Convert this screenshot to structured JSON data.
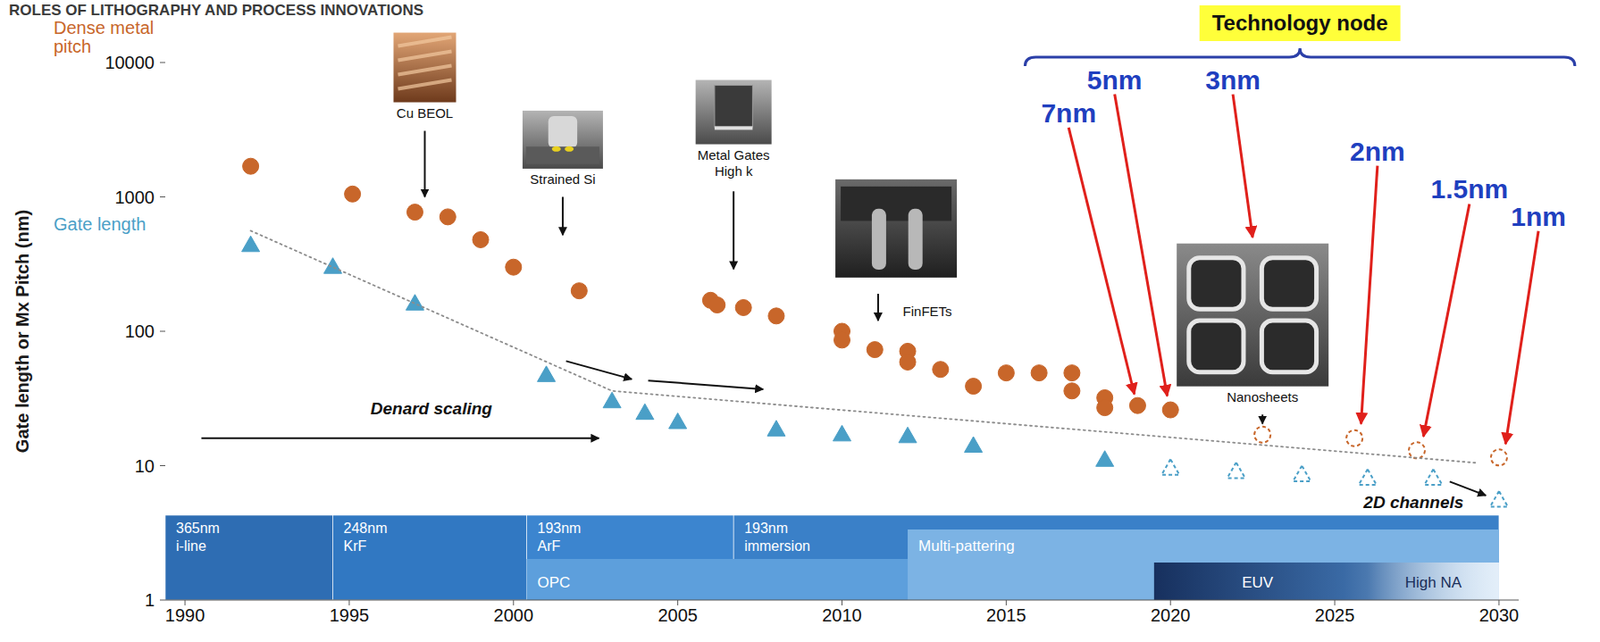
{
  "chart_data": {
    "type": "scatter",
    "title": "ROLES OF LITHOGRAPHY AND PROCESS INNOVATIONS",
    "y_label": "Gate length or Mx Pitch (nm)",
    "log": "y",
    "grid": false,
    "xlim": [
      1989.4,
      2030.6
    ],
    "xticks": [
      1990,
      1995,
      2000,
      2005,
      2010,
      2015,
      2020,
      2025,
      2030
    ],
    "ylim": [
      1,
      10000
    ],
    "yticks": [
      1,
      10,
      100,
      1000,
      10000
    ],
    "series": [
      {
        "name": "Dense metal pitch",
        "color": "#c8662a",
        "marker": "circle",
        "x": [
          1992,
          1995.1,
          1997,
          1998,
          1999,
          2000,
          2002,
          2006,
          2006.2,
          2007,
          2008,
          2010,
          2010,
          2011,
          2012,
          2012,
          2013,
          2014,
          2015,
          2016,
          2017,
          2017,
          2018,
          2018,
          2019,
          2020
        ],
        "values": [
          1690,
          1050,
          770,
          710,
          480,
          300,
          200,
          170,
          157,
          150,
          130,
          100,
          86,
          73,
          71,
          59,
          52,
          39,
          49,
          49,
          49,
          36,
          32,
          27,
          28,
          26
        ]
      },
      {
        "color": "#c8662a",
        "marker": "circle-open",
        "line_style": "dashed",
        "x": [
          2022.8,
          2025.6,
          2027.5,
          2030
        ],
        "values": [
          17,
          16,
          13,
          11.5
        ]
      },
      {
        "name": "Gate length",
        "color": "#4a9fc7",
        "marker": "triangle",
        "x": [
          1992,
          1994.5,
          1997,
          2001,
          2003,
          2004,
          2005,
          2008,
          2010,
          2012,
          2014,
          2018
        ],
        "values": [
          436,
          300,
          160,
          47,
          30,
          24.6,
          21,
          18.5,
          17,
          16.5,
          14,
          11
        ]
      },
      {
        "color": "#4a9fc7",
        "marker": "triangle-open",
        "line_style": "dashed",
        "x": [
          2020,
          2022,
          2024,
          2026,
          2028,
          2030
        ],
        "values": [
          9.5,
          9,
          8.5,
          8,
          8,
          5.5
        ]
      },
      {
        "type": "line",
        "color": "#8c8c8c",
        "line_style": "dotted",
        "x": [
          1992,
          2003,
          2029.3
        ],
        "values": [
          560,
          36,
          10.5
        ]
      }
    ],
    "header": "Technology node",
    "nodes": [
      {
        "label": "7nm",
        "x": 2016.9,
        "y": 3600,
        "tip_x": 2018.9,
        "tip_y": 34
      },
      {
        "label": "5nm",
        "x": 2018.3,
        "y": 6360,
        "tip_x": 2019.9,
        "tip_y": 33
      },
      {
        "label": "3nm",
        "x": 2021.9,
        "y": 6360,
        "tip_x": 2022.5,
        "tip_y": 500
      },
      {
        "label": "2nm",
        "x": 2026.3,
        "y": 1870,
        "tip_x": 2025.8,
        "tip_y": 20.5
      },
      {
        "label": "1.5nm",
        "x": 2029.1,
        "y": 970,
        "tip_x": 2027.7,
        "tip_y": 16.5
      },
      {
        "label": "1nm",
        "x": 2031.2,
        "y": 610,
        "tip_x": 2030.2,
        "tip_y": 14.5
      }
    ],
    "insets": [
      {
        "caption": "Cu BEOL",
        "x": 1997.3,
        "y": 3900
      },
      {
        "caption": "Strained Si",
        "x": 2001.5,
        "y": 1250
      },
      {
        "caption": "Metal Gates\nHigh k",
        "x": 2006.7,
        "y": 1900
      },
      {
        "caption": "FinFETs",
        "x": 2012.6,
        "y": 130
      },
      {
        "caption": "Nanosheets",
        "x": 2022.8,
        "y": 30
      }
    ],
    "annotations": [
      {
        "text": "Denard scaling",
        "x": 1997.5,
        "y": 24
      },
      {
        "text": "2D channels",
        "x": 2027.4,
        "y": 4.8
      }
    ],
    "arrows": [
      {
        "x": [
          1990.5,
          2002.6
        ],
        "y": [
          16,
          16
        ],
        "color": "#111111"
      },
      {
        "x": [
          2001.6,
          2003.6
        ],
        "y": [
          60,
          44
        ],
        "color": "#111111"
      },
      {
        "x": [
          2004.1,
          2007.6
        ],
        "y": [
          43,
          37
        ],
        "color": "#111111"
      },
      {
        "x": [
          2028.5,
          2029.6
        ],
        "y": [
          7.6,
          6.0
        ],
        "color": "#111111"
      },
      {
        "x": [
          1997.3,
          1997.3
        ],
        "y": [
          3100,
          1000
        ],
        "color": "#111111"
      },
      {
        "x": [
          2001.5,
          2001.5
        ],
        "y": [
          1000,
          520
        ],
        "color": "#111111"
      },
      {
        "x": [
          2006.7,
          2006.7
        ],
        "y": [
          1100,
          290
        ],
        "color": "#111111"
      },
      {
        "x": [
          2011.1,
          2011.1
        ],
        "y": [
          190,
          120
        ],
        "color": "#111111"
      },
      {
        "x": [
          2022.8,
          2022.8
        ],
        "y": [
          24,
          20.5
        ],
        "color": "#111111"
      }
    ],
    "lithography": {
      "tools": [
        {
          "label": "365nm\ni-line",
          "start": 1989.4,
          "end": 1994.5
        },
        {
          "label": "248nm\nKrF",
          "start": 1994.5,
          "end": 2000.4
        },
        {
          "label": "193nm\nArF",
          "start": 2000.4,
          "end": 2006.7
        },
        {
          "label": "193nm\nimmersion",
          "start": 2006.7,
          "end": 2030
        }
      ],
      "techniques": [
        {
          "label": "OPC",
          "start": 2000.4,
          "end": 2030
        },
        {
          "label": "Multi-pattering",
          "start": 2012,
          "end": 2030
        },
        {
          "label": "EUV",
          "start": 2019.5,
          "end": 2030
        },
        {
          "label": "High NA",
          "start": 2026,
          "end": 2030
        }
      ]
    }
  }
}
